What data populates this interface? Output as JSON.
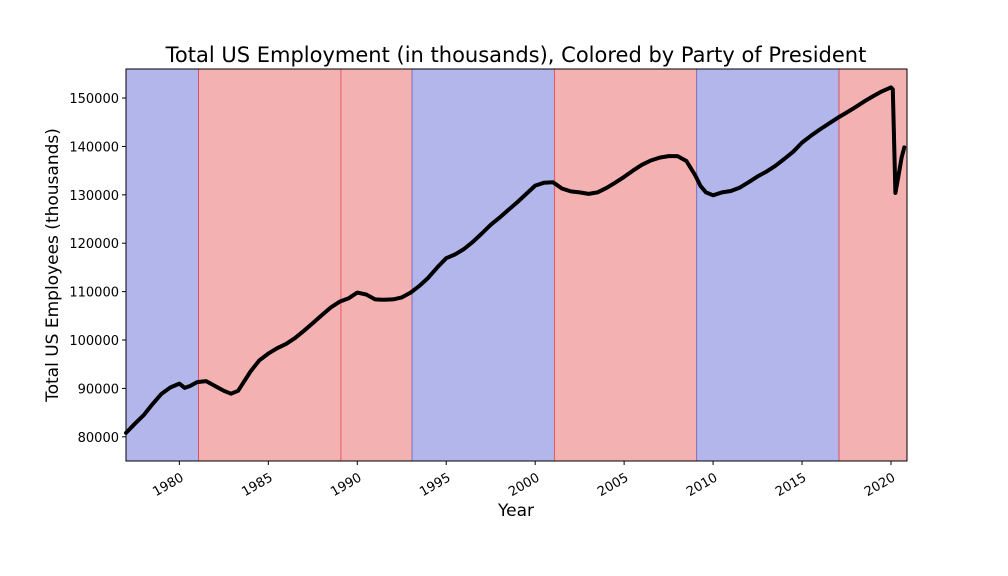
{
  "chart_data": {
    "type": "line",
    "title": "Total US Employment (in thousands), Colored by Party of President",
    "xlabel": "Year",
    "ylabel": "Total US Employees (thousands)",
    "xlim": [
      1977.0,
      2020.9
    ],
    "ylim": [
      75000,
      156000
    ],
    "x_ticks": [
      1980,
      1985,
      1990,
      1995,
      2000,
      2005,
      2010,
      2015,
      2020
    ],
    "y_ticks": [
      80000,
      90000,
      100000,
      110000,
      120000,
      130000,
      140000,
      150000
    ],
    "grid": false,
    "legend": "none",
    "party_colors": {
      "Democratic": "#b3b6ea",
      "Republican": "#f4b1b2"
    },
    "party_edge_colors": {
      "Democratic": "#6a6ad0",
      "Republican": "#e0474c"
    },
    "line_color": "#000000",
    "presidential_terms": [
      {
        "start": 1977.0,
        "end": 1981.08,
        "party": "Democratic"
      },
      {
        "start": 1981.08,
        "end": 1989.08,
        "party": "Republican"
      },
      {
        "start": 1989.08,
        "end": 1993.08,
        "party": "Republican"
      },
      {
        "start": 1993.08,
        "end": 2001.08,
        "party": "Democratic"
      },
      {
        "start": 2001.08,
        "end": 2009.08,
        "party": "Republican"
      },
      {
        "start": 2009.08,
        "end": 2017.08,
        "party": "Democratic"
      },
      {
        "start": 2017.08,
        "end": 2020.9,
        "party": "Republican"
      }
    ],
    "series": [
      {
        "x": [
          1977.0,
          1977.5,
          1978.0,
          1978.5,
          1979.0,
          1979.5,
          1980.0,
          1980.3,
          1980.6,
          1981.0,
          1981.5,
          1982.0,
          1982.5,
          1982.9,
          1983.3,
          1983.6,
          1984.0,
          1984.5,
          1985.0,
          1985.5,
          1986.0,
          1986.5,
          1987.0,
          1987.5,
          1988.0,
          1988.5,
          1989.0,
          1989.5,
          1990.0,
          1990.5,
          1991.0,
          1991.5,
          1992.0,
          1992.5,
          1993.0,
          1993.5,
          1994.0,
          1994.5,
          1995.0,
          1995.5,
          1996.0,
          1996.5,
          1997.0,
          1997.5,
          1998.0,
          1998.5,
          1999.0,
          1999.5,
          2000.0,
          2000.5,
          2001.0,
          2001.5,
          2002.0,
          2002.5,
          2003.0,
          2003.5,
          2004.0,
          2004.5,
          2005.0,
          2005.5,
          2006.0,
          2006.5,
          2007.0,
          2007.5,
          2008.0,
          2008.5,
          2009.0,
          2009.3,
          2009.6,
          2010.0,
          2010.5,
          2011.0,
          2011.5,
          2012.0,
          2012.5,
          2013.0,
          2013.5,
          2014.0,
          2014.5,
          2015.0,
          2015.5,
          2016.0,
          2016.5,
          2017.0,
          2017.5,
          2018.0,
          2018.5,
          2019.0,
          2019.5,
          2020.0,
          2020.1,
          2020.25,
          2020.4,
          2020.6,
          2020.75
        ],
        "y": [
          80800,
          82700,
          84500,
          86800,
          88900,
          90200,
          91000,
          90100,
          90500,
          91300,
          91500,
          90500,
          89500,
          88900,
          89500,
          91200,
          93500,
          95800,
          97200,
          98300,
          99200,
          100400,
          101900,
          103500,
          105100,
          106700,
          107900,
          108600,
          109800,
          109400,
          108400,
          108300,
          108400,
          108800,
          109800,
          111200,
          112900,
          115000,
          116900,
          117700,
          118800,
          120300,
          122000,
          123800,
          125300,
          126900,
          128500,
          130200,
          131900,
          132500,
          132600,
          131300,
          130700,
          130500,
          130200,
          130500,
          131400,
          132500,
          133700,
          135000,
          136200,
          137100,
          137700,
          138000,
          138000,
          137000,
          134000,
          131800,
          130500,
          129900,
          130500,
          130800,
          131500,
          132600,
          133800,
          134800,
          136000,
          137400,
          138900,
          140800,
          142200,
          143500,
          144700,
          145900,
          147000,
          148100,
          149300,
          150400,
          151400,
          152200,
          151800,
          130400,
          133500,
          137800,
          139800
        ]
      }
    ]
  }
}
